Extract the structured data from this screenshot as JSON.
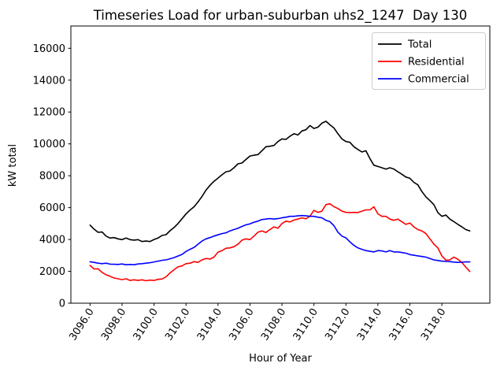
{
  "chart_data": {
    "type": "line",
    "title": "Timeseries Load for urban-suburban uhs2_1247  Day 130",
    "xlabel": "Hour of Year",
    "ylabel": "kW total",
    "xlim": [
      3094.8,
      3121.0
    ],
    "ylim": [
      0,
      17400
    ],
    "grid": false,
    "legend_position": "upper right",
    "xticks": [
      3096,
      3098,
      3100,
      3102,
      3104,
      3106,
      3108,
      3110,
      3112,
      3114,
      3116,
      3118
    ],
    "xtick_labels": [
      "3096.0",
      "3098.0",
      "3100.0",
      "3102.0",
      "3104.0",
      "3106.0",
      "3108.0",
      "3110.0",
      "3112.0",
      "3114.0",
      "3116.0",
      "3118.0"
    ],
    "yticks": [
      0,
      2000,
      4000,
      6000,
      8000,
      10000,
      12000,
      14000,
      16000
    ],
    "ytick_labels": [
      "0",
      "2000",
      "4000",
      "6000",
      "8000",
      "10000",
      "12000",
      "14000",
      "16000"
    ],
    "x": [
      3096.0,
      3096.25,
      3096.5,
      3096.75,
      3097.0,
      3097.25,
      3097.5,
      3097.75,
      3098.0,
      3098.25,
      3098.5,
      3098.75,
      3099.0,
      3099.25,
      3099.5,
      3099.75,
      3100.0,
      3100.25,
      3100.5,
      3100.75,
      3101.0,
      3101.25,
      3101.5,
      3101.75,
      3102.0,
      3102.25,
      3102.5,
      3102.75,
      3103.0,
      3103.25,
      3103.5,
      3103.75,
      3104.0,
      3104.25,
      3104.5,
      3104.75,
      3105.0,
      3105.25,
      3105.5,
      3105.75,
      3106.0,
      3106.25,
      3106.5,
      3106.75,
      3107.0,
      3107.25,
      3107.5,
      3107.75,
      3108.0,
      3108.25,
      3108.5,
      3108.75,
      3109.0,
      3109.25,
      3109.5,
      3109.75,
      3110.0,
      3110.25,
      3110.5,
      3110.75,
      3111.0,
      3111.25,
      3111.5,
      3111.75,
      3112.0,
      3112.25,
      3112.5,
      3112.75,
      3113.0,
      3113.25,
      3113.5,
      3113.75,
      3114.0,
      3114.25,
      3114.5,
      3114.75,
      3115.0,
      3115.25,
      3115.5,
      3115.75,
      3116.0,
      3116.25,
      3116.5,
      3116.75,
      3117.0,
      3117.25,
      3117.5,
      3117.75,
      3118.0,
      3118.25,
      3118.5,
      3118.75,
      3119.0,
      3119.25,
      3119.5,
      3119.75
    ],
    "series": [
      {
        "name": "Total",
        "color": "#000000",
        "values": [
          4900,
          4650,
          4450,
          4470,
          4210,
          4090,
          4120,
          4040,
          3990,
          4090,
          3990,
          3960,
          3990,
          3870,
          3900,
          3870,
          4000,
          4090,
          4250,
          4300,
          4550,
          4750,
          5000,
          5300,
          5600,
          5850,
          6050,
          6350,
          6700,
          7100,
          7400,
          7650,
          7850,
          8060,
          8250,
          8300,
          8500,
          8750,
          8800,
          9020,
          9240,
          9290,
          9330,
          9570,
          9820,
          9850,
          9900,
          10150,
          10310,
          10280,
          10480,
          10640,
          10560,
          10810,
          10890,
          11150,
          10970,
          11050,
          11300,
          11420,
          11200,
          11000,
          10640,
          10310,
          10150,
          10100,
          9820,
          9650,
          9490,
          9570,
          9080,
          8660,
          8580,
          8500,
          8420,
          8500,
          8420,
          8250,
          8090,
          7920,
          7840,
          7590,
          7430,
          7010,
          6680,
          6440,
          6190,
          5690,
          5450,
          5530,
          5280,
          5120,
          4950,
          4790,
          4620,
          4540
        ]
      },
      {
        "name": "Residential",
        "color": "#ff0000",
        "values": [
          2370,
          2150,
          2160,
          1940,
          1780,
          1690,
          1580,
          1530,
          1480,
          1530,
          1430,
          1470,
          1430,
          1470,
          1410,
          1450,
          1430,
          1500,
          1520,
          1650,
          1900,
          2100,
          2280,
          2340,
          2480,
          2510,
          2610,
          2560,
          2720,
          2810,
          2770,
          2890,
          3200,
          3300,
          3450,
          3470,
          3550,
          3700,
          3960,
          4040,
          3990,
          4210,
          4460,
          4540,
          4440,
          4620,
          4790,
          4700,
          5000,
          5150,
          5100,
          5220,
          5280,
          5360,
          5300,
          5450,
          5830,
          5700,
          5780,
          6190,
          6240,
          6060,
          5940,
          5780,
          5700,
          5690,
          5700,
          5690,
          5780,
          5860,
          5860,
          6050,
          5610,
          5450,
          5450,
          5280,
          5200,
          5280,
          5110,
          4950,
          5030,
          4790,
          4620,
          4540,
          4370,
          4040,
          3710,
          3470,
          2970,
          2700,
          2720,
          2890,
          2760,
          2560,
          2260,
          1990
        ]
      },
      {
        "name": "Commercial",
        "color": "#0000ff",
        "values": [
          2600,
          2560,
          2510,
          2480,
          2510,
          2450,
          2440,
          2430,
          2460,
          2410,
          2430,
          2410,
          2460,
          2480,
          2510,
          2540,
          2590,
          2640,
          2690,
          2720,
          2790,
          2860,
          2960,
          3060,
          3250,
          3380,
          3500,
          3700,
          3900,
          4040,
          4120,
          4210,
          4290,
          4370,
          4420,
          4540,
          4620,
          4700,
          4820,
          4920,
          4980,
          5080,
          5150,
          5250,
          5280,
          5310,
          5280,
          5310,
          5360,
          5400,
          5450,
          5450,
          5480,
          5500,
          5480,
          5450,
          5450,
          5400,
          5360,
          5200,
          5120,
          4870,
          4460,
          4210,
          4100,
          3850,
          3630,
          3470,
          3380,
          3300,
          3260,
          3220,
          3300,
          3280,
          3220,
          3300,
          3220,
          3220,
          3180,
          3140,
          3050,
          3010,
          2970,
          2930,
          2890,
          2810,
          2720,
          2680,
          2640,
          2620,
          2610,
          2580,
          2560,
          2570,
          2590,
          2590
        ]
      }
    ],
    "frame_color": "#000000",
    "legend_border_color": "#cccccc",
    "background_color": "#ffffff"
  }
}
